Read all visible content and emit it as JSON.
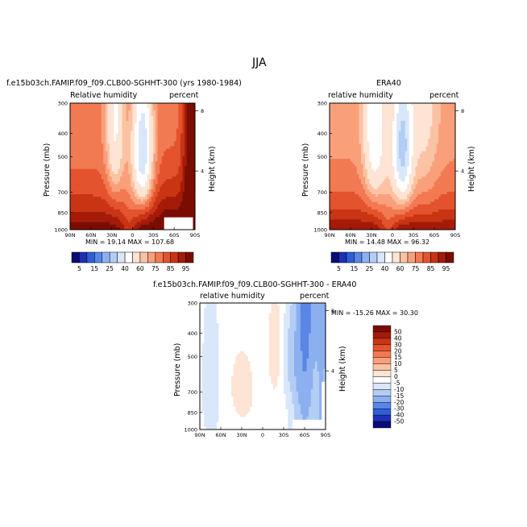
{
  "figure": {
    "title": "JJA"
  },
  "chart_data": [
    {
      "type": "heatmap",
      "name": "model",
      "title": "f.e15b03ch.FAMIP.f09_f09.CLB00-SGHHT-300 (yrs 1980-1984)",
      "variable_label": "Relative humidity",
      "units_label": "percent",
      "xlabel": "",
      "ylabel": "Pressure  (mb)",
      "y2label": "Height  (km)",
      "x_ticks": [
        "90N",
        "60N",
        "30N",
        "0",
        "30S",
        "60S",
        "90S"
      ],
      "y_ticks": [
        "300",
        "400",
        "500",
        "700",
        "850",
        "1000"
      ],
      "y_tick_values": [
        300,
        400,
        500,
        700,
        850,
        1000
      ],
      "y2_ticks": [
        "8",
        "4"
      ],
      "y2_tick_values": [
        8,
        4
      ],
      "x_range": [
        90,
        -90
      ],
      "y_range": [
        1000,
        300
      ],
      "stats": "MIN =   19.14   MAX = 107.68",
      "min": 19.14,
      "max": 107.68,
      "colorbar_labels": [
        "5",
        "15",
        "25",
        "40",
        "60",
        "75",
        "85",
        "95"
      ],
      "colorbar_colors": [
        "#0a0a7a",
        "#1f2fb5",
        "#2f5ed8",
        "#5a86e6",
        "#8cb0ef",
        "#b3cdf5",
        "#d9e7fb",
        "#ffffff",
        "#fde4d4",
        "#fbc3a3",
        "#f9a07b",
        "#f27a52",
        "#e3532d",
        "#c93414",
        "#a41b08",
        "#7a0d03"
      ],
      "colorbar_position": "bottom"
    },
    {
      "type": "heatmap",
      "name": "obs",
      "title": "ERA40",
      "variable_label": "relative humidity",
      "units_label": "percent",
      "xlabel": "",
      "ylabel": "Pressure  (mb)",
      "y2label": "Height  (km)",
      "x_ticks": [
        "90N",
        "60N",
        "30N",
        "0",
        "30S",
        "60S",
        "90S"
      ],
      "y_ticks": [
        "300",
        "400",
        "500",
        "700",
        "850",
        "1000"
      ],
      "y_tick_values": [
        300,
        400,
        500,
        700,
        850,
        1000
      ],
      "y2_ticks": [
        "8",
        "4"
      ],
      "y2_tick_values": [
        8,
        4
      ],
      "x_range": [
        90,
        -90
      ],
      "y_range": [
        1000,
        300
      ],
      "stats": "MIN =   14.48   MAX =   96.32",
      "min": 14.48,
      "max": 96.32,
      "colorbar_labels": [
        "5",
        "15",
        "25",
        "40",
        "60",
        "75",
        "85",
        "95"
      ],
      "colorbar_colors": [
        "#0a0a7a",
        "#1f2fb5",
        "#2f5ed8",
        "#5a86e6",
        "#8cb0ef",
        "#b3cdf5",
        "#d9e7fb",
        "#ffffff",
        "#fde4d4",
        "#fbc3a3",
        "#f9a07b",
        "#f27a52",
        "#e3532d",
        "#c93414",
        "#a41b08",
        "#7a0d03"
      ],
      "colorbar_position": "bottom"
    },
    {
      "type": "heatmap",
      "name": "difference",
      "title": "f.e15b03ch.FAMIP.f09_f09.CLB00-SGHHT-300 - ERA40",
      "variable_label": "relative humidity",
      "units_label": "percent",
      "xlabel": "",
      "ylabel": "Pressure  (mb)",
      "y2label": "Height  (km)",
      "x_ticks": [
        "90N",
        "60N",
        "30N",
        "0",
        "30S",
        "60S",
        "90S"
      ],
      "y_ticks": [
        "300",
        "400",
        "500",
        "700",
        "850",
        "1000"
      ],
      "y_tick_values": [
        300,
        400,
        500,
        700,
        850,
        1000
      ],
      "y2_ticks": [
        "8",
        "4"
      ],
      "y2_tick_values": [
        8,
        4
      ],
      "x_range": [
        90,
        -90
      ],
      "y_range": [
        1000,
        300
      ],
      "stats": "MIN =  -15.26   MAX =   30.30",
      "min": -15.26,
      "max": 30.3,
      "colorbar_labels": [
        "50",
        "40",
        "30",
        "20",
        "15",
        "10",
        "5",
        "0",
        "-5",
        "-10",
        "-15",
        "-20",
        "-30",
        "-40",
        "-50"
      ],
      "colorbar_colors": [
        "#7a0d03",
        "#a41b08",
        "#c93414",
        "#e3532d",
        "#f27a52",
        "#f9a07b",
        "#fbc3a3",
        "#fde4d4",
        "#ffffff",
        "#d9e7fb",
        "#b3cdf5",
        "#8cb0ef",
        "#5a86e6",
        "#2f5ed8",
        "#1f2fb5",
        "#0a0a7a"
      ],
      "colorbar_position": "right"
    }
  ]
}
